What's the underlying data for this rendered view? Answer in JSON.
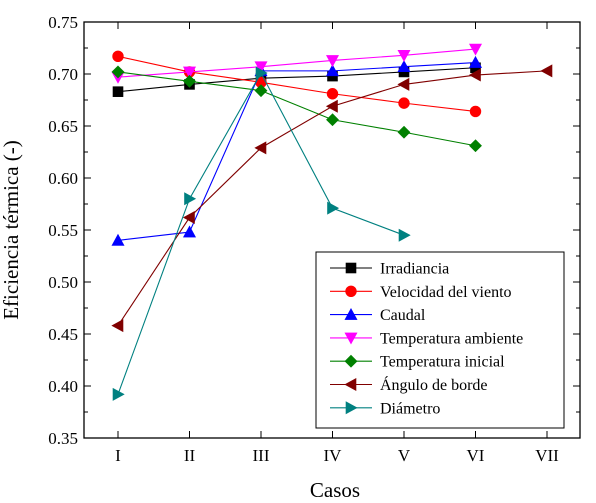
{
  "chart_data": {
    "type": "line",
    "xlabel": "Casos",
    "ylabel": "Eficiencia térmica (-)",
    "categories": [
      "I",
      "II",
      "III",
      "IV",
      "V",
      "VI",
      "VII"
    ],
    "ylim": [
      0.35,
      0.75
    ],
    "yticks": [
      "0.35",
      "0.40",
      "0.45",
      "0.50",
      "0.55",
      "0.60",
      "0.65",
      "0.70",
      "0.75"
    ],
    "grid": false,
    "legend_position": "bottom-right",
    "series": [
      {
        "name": "Irradiancia",
        "color": "#000000",
        "marker": "square",
        "values": [
          0.683,
          0.69,
          0.696,
          0.698,
          0.702,
          0.706,
          null
        ]
      },
      {
        "name": "Velocidad del viento",
        "color": "#ff0000",
        "marker": "circle",
        "values": [
          0.717,
          0.702,
          0.692,
          0.681,
          0.672,
          0.664,
          null
        ]
      },
      {
        "name": "Caudal",
        "color": "#0000ff",
        "marker": "triangle-up",
        "values": [
          0.54,
          0.548,
          0.703,
          0.703,
          0.707,
          0.711,
          null
        ]
      },
      {
        "name": "Temperatura ambiente",
        "color": "#ff00ff",
        "marker": "triangle-down",
        "values": [
          0.697,
          0.702,
          0.707,
          0.713,
          0.718,
          0.724,
          null
        ]
      },
      {
        "name": "Temperatura inicial",
        "color": "#008000",
        "marker": "diamond",
        "values": [
          0.702,
          0.693,
          0.684,
          0.656,
          0.644,
          0.631,
          null
        ]
      },
      {
        "name": "Ángulo de borde",
        "color": "#800000",
        "marker": "triangle-left",
        "values": [
          0.458,
          0.562,
          0.629,
          0.669,
          0.69,
          0.699,
          0.703
        ]
      },
      {
        "name": "Diámetro",
        "color": "#008080",
        "marker": "triangle-right",
        "values": [
          0.392,
          0.58,
          0.701,
          0.571,
          0.545,
          null,
          null
        ]
      }
    ]
  }
}
